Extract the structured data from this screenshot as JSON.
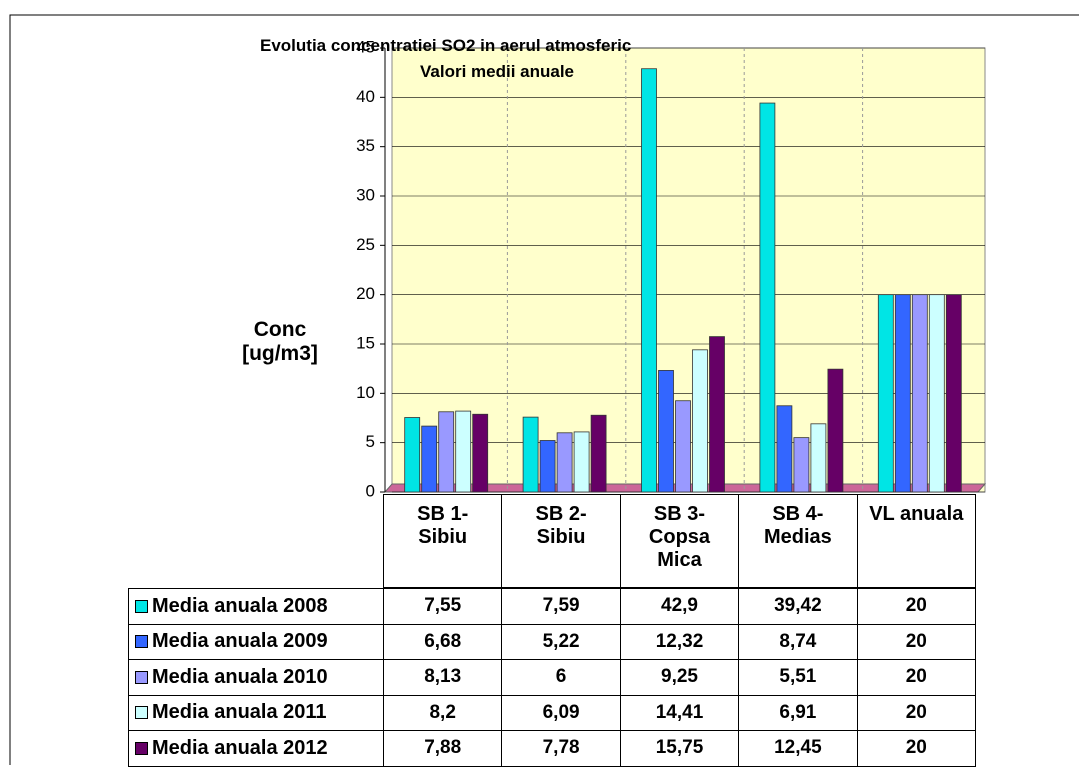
{
  "chart_data": {
    "type": "bar",
    "title": "Evolutia concentratiei SO2 in aerul atmosferic",
    "subtitle": "Valori medii anuale",
    "y_label": "Conc [ug/m3]",
    "categories": [
      "SB 1- Sibiu",
      "SB 2- Sibiu",
      "SB 3- Copsa Mica",
      "SB 4- Medias",
      "VL anuala"
    ],
    "series": [
      {
        "name": "Media anuala 2008",
        "color": "#00e5e5",
        "values": [
          7.55,
          7.59,
          42.9,
          39.42,
          20
        ],
        "value_labels": [
          "7,55",
          "7,59",
          "42,9",
          "39,42",
          "20"
        ]
      },
      {
        "name": "Media anuala 2009",
        "color": "#3366ff",
        "values": [
          6.68,
          5.22,
          12.32,
          8.74,
          20
        ],
        "value_labels": [
          "6,68",
          "5,22",
          "12,32",
          "8,74",
          "20"
        ]
      },
      {
        "name": "Media anuala 2010",
        "color": "#9999ff",
        "values": [
          8.13,
          6,
          9.25,
          5.51,
          20
        ],
        "value_labels": [
          "8,13",
          "6",
          "9,25",
          "5,51",
          "20"
        ]
      },
      {
        "name": "Media anuala 2011",
        "color": "#ccffff",
        "values": [
          8.2,
          6.09,
          14.41,
          6.91,
          20
        ],
        "value_labels": [
          "8,2",
          "6,09",
          "14,41",
          "6,91",
          "20"
        ]
      },
      {
        "name": "Media anuala 2012",
        "color": "#660066",
        "values": [
          7.88,
          7.78,
          15.75,
          12.45,
          20
        ],
        "value_labels": [
          "7,88",
          "7,78",
          "15,75",
          "12,45",
          "20"
        ]
      }
    ],
    "ylim": [
      0,
      45
    ],
    "yticks": [
      0,
      5,
      10,
      15,
      20,
      25,
      30,
      35,
      40,
      45
    ],
    "grid": true
  }
}
